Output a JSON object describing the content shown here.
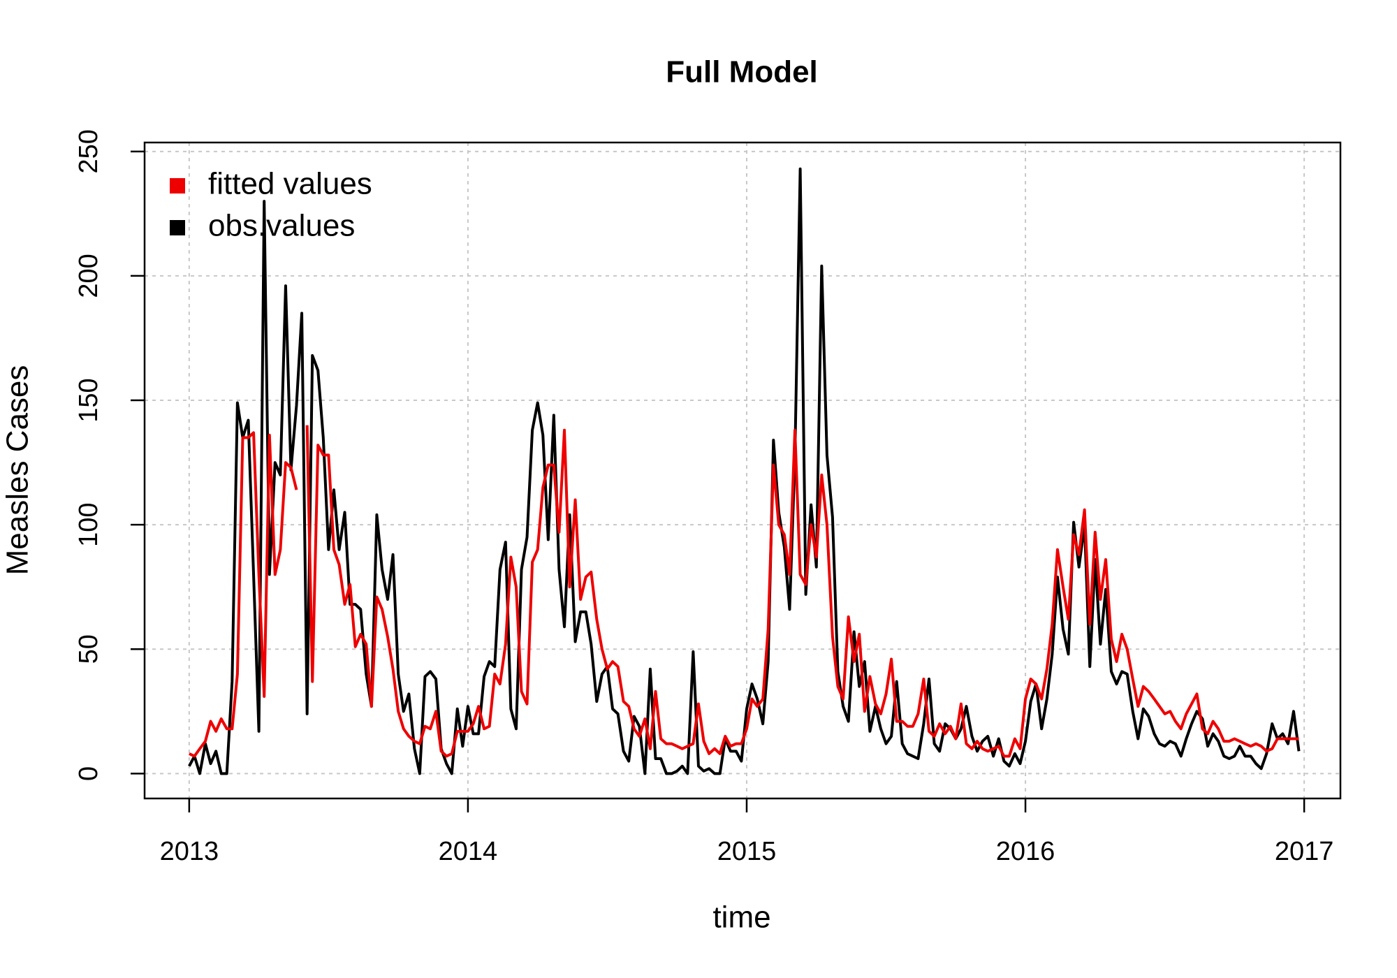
{
  "chart_data": {
    "type": "line",
    "title": "Full Model",
    "xlabel": "time",
    "ylabel": "Measles Cases",
    "xlim": [
      2012.84,
      2017.13
    ],
    "ylim": [
      -10,
      253.6
    ],
    "xticks": [
      2013,
      2014,
      2015,
      2016,
      2017
    ],
    "yticks": [
      0,
      50,
      100,
      150,
      200,
      250
    ],
    "grid": true,
    "legend": "top-left",
    "x": [
      2013.0,
      2013.019,
      2013.038,
      2013.058,
      2013.077,
      2013.096,
      2013.115,
      2013.135,
      2013.154,
      2013.173,
      2013.192,
      2013.212,
      2013.231,
      2013.25,
      2013.269,
      2013.288,
      2013.308,
      2013.327,
      2013.346,
      2013.365,
      2013.385,
      2013.404,
      2013.423,
      2013.442,
      2013.462,
      2013.481,
      2013.5,
      2013.519,
      2013.538,
      2013.558,
      2013.577,
      2013.596,
      2013.615,
      2013.635,
      2013.654,
      2013.673,
      2013.692,
      2013.712,
      2013.731,
      2013.75,
      2013.769,
      2013.788,
      2013.808,
      2013.827,
      2013.846,
      2013.865,
      2013.885,
      2013.904,
      2013.923,
      2013.942,
      2013.962,
      2013.981,
      2014.0,
      2014.019,
      2014.038,
      2014.058,
      2014.077,
      2014.096,
      2014.115,
      2014.135,
      2014.154,
      2014.173,
      2014.192,
      2014.212,
      2014.231,
      2014.25,
      2014.269,
      2014.288,
      2014.308,
      2014.327,
      2014.346,
      2014.365,
      2014.385,
      2014.404,
      2014.423,
      2014.442,
      2014.462,
      2014.481,
      2014.5,
      2014.519,
      2014.538,
      2014.558,
      2014.577,
      2014.596,
      2014.615,
      2014.635,
      2014.654,
      2014.673,
      2014.692,
      2014.712,
      2014.731,
      2014.75,
      2014.769,
      2014.788,
      2014.808,
      2014.827,
      2014.846,
      2014.865,
      2014.885,
      2014.904,
      2014.923,
      2014.942,
      2014.962,
      2014.981,
      2015.0,
      2015.019,
      2015.038,
      2015.058,
      2015.077,
      2015.096,
      2015.115,
      2015.135,
      2015.154,
      2015.173,
      2015.192,
      2015.212,
      2015.231,
      2015.25,
      2015.269,
      2015.288,
      2015.308,
      2015.327,
      2015.346,
      2015.365,
      2015.385,
      2015.404,
      2015.423,
      2015.442,
      2015.462,
      2015.481,
      2015.5,
      2015.519,
      2015.538,
      2015.558,
      2015.577,
      2015.596,
      2015.615,
      2015.635,
      2015.654,
      2015.673,
      2015.692,
      2015.712,
      2015.731,
      2015.75,
      2015.769,
      2015.788,
      2015.808,
      2015.827,
      2015.846,
      2015.865,
      2015.885,
      2015.904,
      2015.923,
      2015.942,
      2015.962,
      2015.981,
      2016.0,
      2016.019,
      2016.038,
      2016.058,
      2016.077,
      2016.096,
      2016.115,
      2016.135,
      2016.154,
      2016.173,
      2016.192,
      2016.212,
      2016.231,
      2016.25,
      2016.269,
      2016.288,
      2016.308,
      2016.327,
      2016.346,
      2016.365,
      2016.385,
      2016.404,
      2016.423,
      2016.442,
      2016.462,
      2016.481,
      2016.5,
      2016.519,
      2016.538,
      2016.558,
      2016.577,
      2016.596,
      2016.615,
      2016.635,
      2016.654,
      2016.673,
      2016.692,
      2016.712,
      2016.731,
      2016.75,
      2016.769,
      2016.788,
      2016.808,
      2016.827,
      2016.846,
      2016.865,
      2016.885,
      2016.904,
      2016.923,
      2016.942,
      2016.962,
      2016.981
    ],
    "series": [
      {
        "name": "fitted values",
        "color": "#ee0000",
        "values": [
          8,
          7,
          10,
          13,
          21,
          17,
          22,
          18,
          18,
          40,
          135,
          135,
          137,
          80,
          31,
          136,
          80,
          90,
          125,
          123,
          114,
          null,
          140,
          37,
          132,
          128,
          128,
          90,
          84,
          68,
          76,
          51,
          56,
          52,
          27,
          71,
          66,
          55,
          42,
          25,
          18,
          15,
          13,
          12,
          19,
          18,
          25,
          9,
          7,
          8,
          17,
          17,
          17,
          20,
          27,
          18,
          19,
          40,
          36,
          52,
          87,
          75,
          33,
          28,
          85,
          90,
          115,
          124,
          124,
          97,
          138,
          75,
          110,
          70,
          79,
          81,
          62,
          50,
          42,
          45,
          43,
          29,
          27,
          18,
          15,
          22,
          10,
          33,
          14,
          12,
          12,
          11,
          10,
          11,
          12,
          28,
          13,
          8,
          10,
          8,
          15,
          11,
          12,
          12,
          18,
          30,
          27,
          30,
          58,
          124,
          100,
          96,
          80,
          138,
          80,
          76,
          100,
          87,
          120,
          100,
          55,
          35,
          30,
          63,
          45,
          56,
          25,
          39,
          28,
          24,
          32,
          46,
          21,
          21,
          19,
          19,
          24,
          38,
          17,
          15,
          20,
          16,
          19,
          14,
          28,
          12,
          10,
          13,
          10,
          9,
          10,
          11,
          7,
          7,
          14,
          10,
          30,
          38,
          36,
          30,
          42,
          60,
          90,
          75,
          62,
          96,
          88,
          106,
          60,
          97,
          70,
          86,
          54,
          45,
          56,
          50,
          38,
          27,
          35,
          33,
          30,
          27,
          24,
          25,
          21,
          18,
          24,
          28,
          32,
          18,
          16,
          21,
          18,
          13,
          13,
          14,
          13,
          12,
          11,
          12,
          11,
          9,
          10,
          14,
          14,
          14,
          14,
          14
        ]
      },
      {
        "name": "obs.values",
        "color": "#000000",
        "values": [
          3,
          7,
          0,
          12,
          4,
          9,
          0,
          0,
          37,
          149,
          135,
          142,
          80,
          17,
          230,
          80,
          125,
          120,
          196,
          122,
          148,
          185,
          24,
          168,
          162,
          135,
          90,
          114,
          90,
          105,
          68,
          68,
          66,
          40,
          27,
          104,
          82,
          70,
          88,
          40,
          25,
          32,
          10,
          0,
          39,
          41,
          38,
          10,
          4,
          0,
          26,
          11,
          27,
          16,
          16,
          39,
          45,
          43,
          82,
          93,
          26,
          18,
          82,
          95,
          138,
          149,
          136,
          94,
          144,
          82,
          59,
          104,
          53,
          65,
          65,
          52,
          29,
          40,
          43,
          26,
          24,
          9,
          5,
          23,
          19,
          0,
          42,
          6,
          6,
          0,
          0,
          1,
          3,
          0,
          49,
          3,
          1,
          2,
          0,
          0,
          14,
          9,
          9,
          5,
          26,
          36,
          30,
          20,
          45,
          134,
          105,
          91,
          66,
          127,
          243,
          72,
          108,
          83,
          204,
          128,
          103,
          41,
          27,
          21,
          57,
          35,
          45,
          17,
          27,
          18,
          12,
          15,
          37,
          12,
          8,
          7,
          6,
          20,
          38,
          12,
          9,
          20,
          18,
          14,
          18,
          27,
          15,
          9,
          13,
          15,
          7,
          14,
          5,
          3,
          8,
          4,
          13,
          29,
          36,
          18,
          30,
          48,
          79,
          58,
          48,
          101,
          83,
          100,
          43,
          86,
          52,
          74,
          41,
          36,
          41,
          40,
          25,
          14,
          26,
          23,
          16,
          12,
          11,
          13,
          12,
          7,
          14,
          20,
          25,
          22,
          11,
          16,
          13,
          7,
          6,
          7,
          11,
          7,
          7,
          4,
          2,
          8,
          20,
          14,
          16,
          12,
          25,
          9
        ]
      }
    ]
  }
}
